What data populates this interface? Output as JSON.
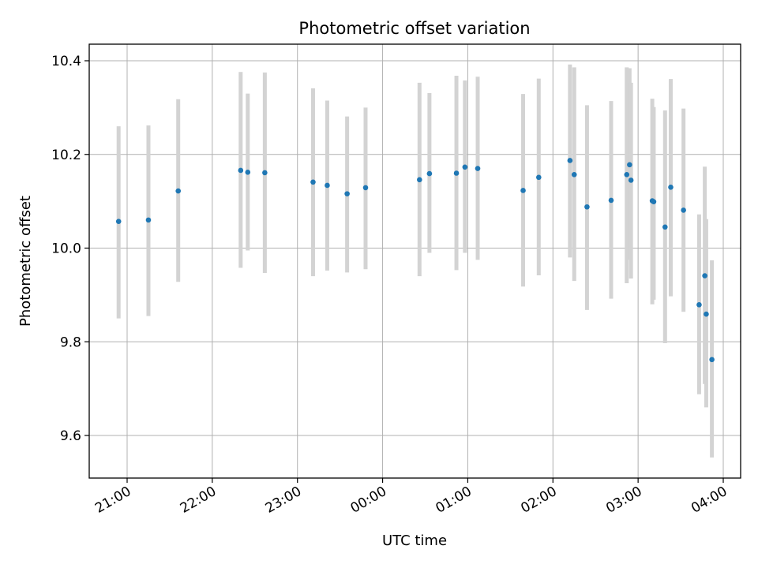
{
  "chart_data": {
    "type": "scatter",
    "title": "Photometric offset variation",
    "xlabel": "UTC time",
    "ylabel": "Photometric offset",
    "x_ticks": [
      "21:00",
      "22:00",
      "23:00",
      "00:00",
      "01:00",
      "02:00",
      "03:00",
      "04:00"
    ],
    "y_ticks": [
      "9.6",
      "9.8",
      "10.0",
      "10.2",
      "10.4"
    ],
    "ylim": [
      9.51,
      10.44
    ],
    "grid": true,
    "colors": {
      "points": "#1f77b4",
      "errorbars": "#d3d3d3",
      "grid": "#b0b0b0"
    },
    "series": [
      {
        "x": [
          "20:54",
          "21:15",
          "21:36",
          "22:20",
          "22:25",
          "22:37",
          "23:11",
          "23:21",
          "23:35",
          "23:48",
          "00:26",
          "00:33",
          "00:52",
          "00:58",
          "01:07",
          "01:39",
          "01:50",
          "02:12",
          "02:15",
          "02:24",
          "02:41",
          "02:52",
          "02:54",
          "02:55",
          "03:10",
          "03:11",
          "03:19",
          "03:23",
          "03:32",
          "03:43",
          "03:47",
          "03:48",
          "03:52"
        ],
        "y": [
          10.057,
          10.06,
          10.122,
          10.166,
          10.162,
          10.161,
          10.141,
          10.134,
          10.116,
          10.129,
          10.146,
          10.159,
          10.16,
          10.173,
          10.17,
          10.123,
          10.151,
          10.187,
          10.157,
          10.088,
          10.102,
          10.157,
          10.178,
          10.145,
          10.101,
          10.099,
          10.045,
          10.13,
          10.081,
          9.879,
          9.941,
          9.859,
          9.762
        ],
        "err_low": [
          9.85,
          9.855,
          9.928,
          9.958,
          9.995,
          9.947,
          9.94,
          9.952,
          9.948,
          9.955,
          9.94,
          9.99,
          9.953,
          9.99,
          9.975,
          9.918,
          9.942,
          9.98,
          9.93,
          9.868,
          9.892,
          9.925,
          9.975,
          9.935,
          9.88,
          9.89,
          9.797,
          9.897,
          9.864,
          9.688,
          9.71,
          9.66,
          9.553
        ],
        "err_high": [
          10.26,
          10.262,
          10.318,
          10.376,
          10.33,
          10.375,
          10.341,
          10.315,
          10.281,
          10.3,
          10.353,
          10.331,
          10.368,
          10.358,
          10.366,
          10.329,
          10.362,
          10.392,
          10.386,
          10.305,
          10.314,
          10.386,
          10.384,
          10.353,
          10.319,
          10.301,
          10.294,
          10.361,
          10.298,
          10.072,
          10.174,
          10.062,
          9.974
        ]
      }
    ]
  }
}
